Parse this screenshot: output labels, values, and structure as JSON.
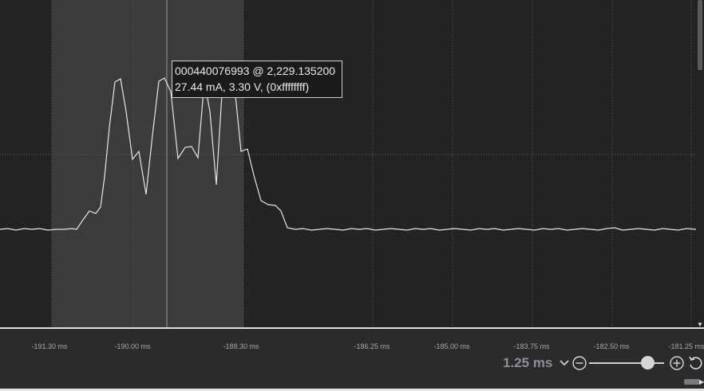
{
  "tooltip": {
    "line1": "000440076993 @ 2,229.135200",
    "line2": "27.44 mA, 3.30 V, (0xffffffff)"
  },
  "axis": {
    "tick_labels": [
      "-191.30 ms",
      "-190.00 ms",
      "-188.30 ms",
      "-186.25 ms",
      "-185.00 ms",
      "-183.75 ms",
      "-182.50 ms",
      "-181.25 ms"
    ]
  },
  "zoom": {
    "value": "1.25 ms",
    "level": 0.85
  },
  "icons": {
    "zoom_dropdown": "chevron-down-icon",
    "zoom_out": "minus-circle-icon",
    "zoom_in": "plus-circle-icon",
    "reset": "reset-icon"
  },
  "colors": {
    "plot_background": "#232325",
    "selection": "#3b3b3d",
    "trace": "#e6e6e6",
    "gridline": "#5a5a5d"
  }
}
